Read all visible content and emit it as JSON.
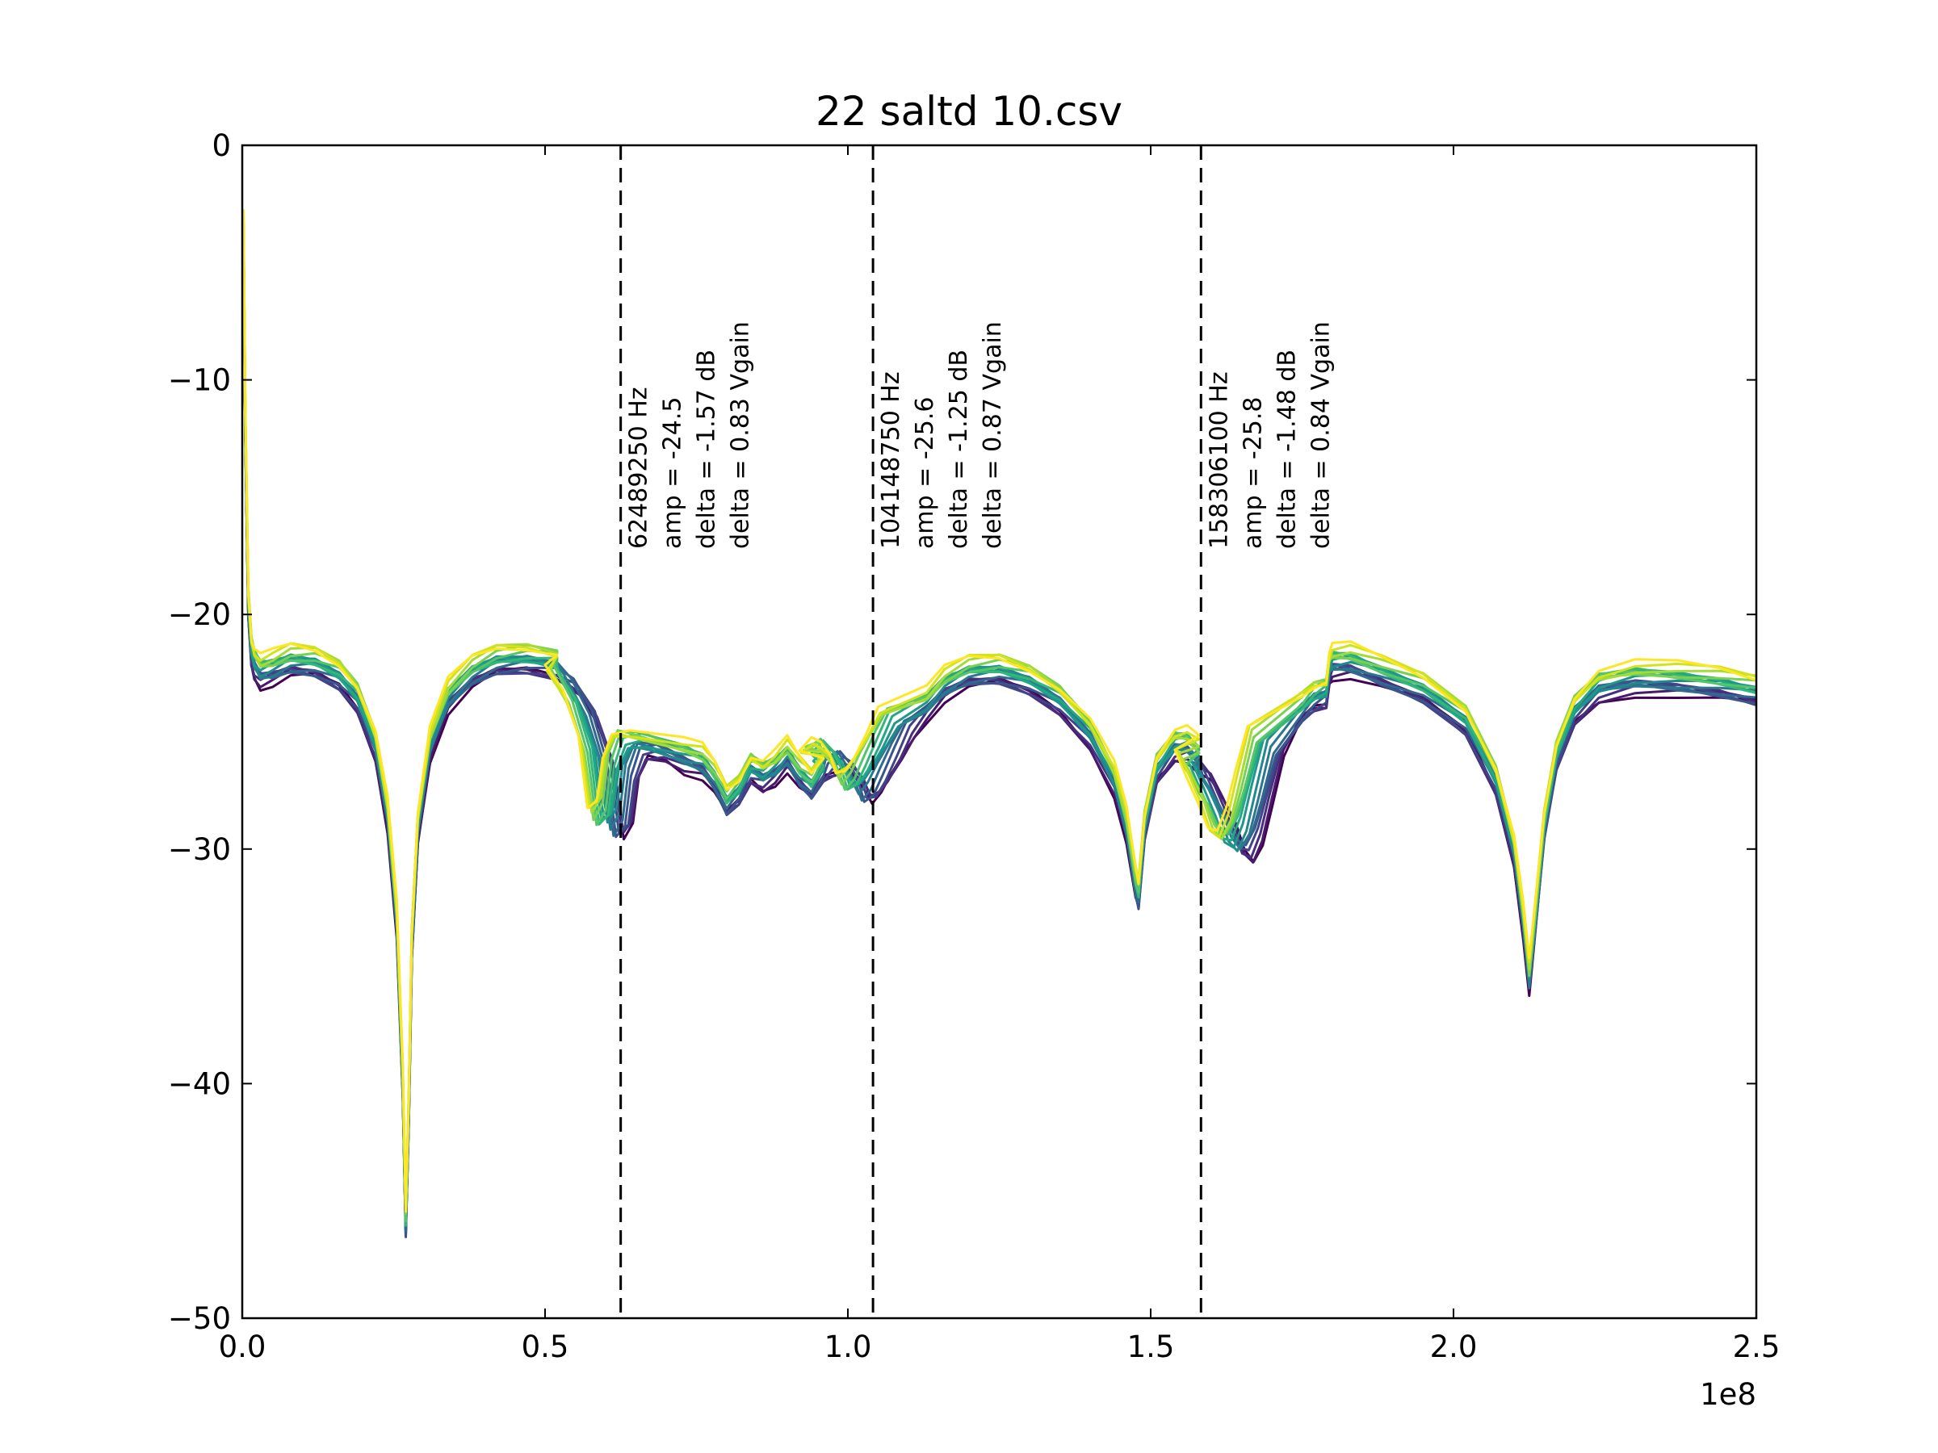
{
  "chart_data": {
    "type": "line",
    "title": "22 saltd 10.csv",
    "xlabel": "",
    "ylabel": "",
    "xlim": [
      0,
      250000000
    ],
    "ylim": [
      -50,
      0
    ],
    "x_offset_label": "1e8",
    "x_ticks": [
      0,
      50000000,
      100000000,
      150000000,
      200000000,
      250000000
    ],
    "x_tick_labels": [
      "0.0",
      "0.5",
      "1.0",
      "1.5",
      "2.0",
      "2.5"
    ],
    "y_ticks": [
      0,
      -10,
      -20,
      -30,
      -40,
      -50
    ],
    "y_tick_labels": [
      "0",
      "−10",
      "−20",
      "−30",
      "−40",
      "−50"
    ],
    "grid": false,
    "legend": "none",
    "colormap": "viridis",
    "series_count": 16,
    "series_colors": [
      "#440154",
      "#481a6c",
      "#472f7d",
      "#414487",
      "#39568c",
      "#31688e",
      "#2a788e",
      "#23888e",
      "#1f988b",
      "#22a884",
      "#35b779",
      "#54c568",
      "#7ad151",
      "#a5db36",
      "#d2e21b",
      "#fde725"
    ],
    "trough_offsets": [
      0,
      -100000,
      -400000,
      -800000,
      -1300000,
      -1700000,
      -2200000,
      -2700000,
      -3300000,
      -3700000,
      -4100000,
      -4500000,
      -5000000,
      -5300000,
      -5700000,
      -6000000
    ],
    "base_curve": {
      "x": [
        200000,
        500000,
        1000000,
        1500000,
        2000000,
        3000000,
        5000000,
        8000000,
        12000000,
        16000000,
        19000000,
        22000000,
        24000000,
        25500000,
        26500000,
        27000000,
        27500000,
        28000000,
        29000000,
        31000000,
        34000000,
        38000000,
        42000000,
        47000000,
        52000000,
        56000000,
        59000000,
        61500000,
        63000000,
        64500000,
        65500000,
        67000000,
        70000000,
        73000000,
        76000000,
        78000000,
        80000000,
        82000000,
        84000000,
        86000000,
        88000000,
        90000000,
        92000000,
        94000000,
        96000000,
        98000000,
        100000000,
        101500000,
        103000000,
        104000000,
        105500000,
        107000000,
        109000000,
        111000000,
        113000000,
        116000000,
        120000000,
        125000000,
        130000000,
        135000000,
        140000000,
        144000000,
        146000000,
        147500000,
        148000000,
        149000000,
        151000000,
        154000000,
        156000000,
        158000000,
        160000000,
        162000000,
        164000000,
        165500000,
        167000000,
        168500000,
        170000000,
        172000000,
        175000000,
        177000000,
        179000000,
        179500000,
        180000000,
        183000000,
        188000000,
        195000000,
        202000000,
        207000000,
        210000000,
        211500000,
        212500000,
        213500000,
        215000000,
        217000000,
        220000000,
        224000000,
        230000000,
        237000000,
        244000000,
        250000000
      ],
      "y": [
        -3.5,
        -12,
        -19.5,
        -21.5,
        -22.0,
        -22.4,
        -22.3,
        -22.0,
        -22.1,
        -22.6,
        -23.5,
        -25.5,
        -28.5,
        -33,
        -40,
        -46,
        -41,
        -34,
        -29,
        -25.5,
        -23.5,
        -22.5,
        -22.0,
        -21.9,
        -22.1,
        -22.7,
        -24,
        -26,
        -29,
        -28.5,
        -26.5,
        -25.5,
        -25.5,
        -26.0,
        -26.3,
        -27,
        -28,
        -27.5,
        -26.5,
        -26.8,
        -26.5,
        -26.0,
        -26.8,
        -27.3,
        -26.5,
        -26.2,
        -25.8,
        -26.2,
        -26.8,
        -27.5,
        -27.2,
        -26.5,
        -25.5,
        -24.5,
        -23.8,
        -23.0,
        -22.5,
        -22.4,
        -22.8,
        -23.6,
        -25.0,
        -27.0,
        -29.0,
        -31.5,
        -32.0,
        -29.0,
        -26.5,
        -25.5,
        -25.5,
        -26.0,
        -26.5,
        -27.5,
        -28.5,
        -29.5,
        -29.8,
        -29.0,
        -27.5,
        -25.5,
        -24.0,
        -23.5,
        -23.3,
        -22.2,
        -22.0,
        -22.0,
        -22.5,
        -23.2,
        -24.5,
        -27.0,
        -30.0,
        -33.0,
        -35.5,
        -33.0,
        -29.0,
        -26.0,
        -24.0,
        -23.0,
        -22.7,
        -22.8,
        -23.0,
        -23.3
      ]
    },
    "annotations": [
      {
        "x": 62489250,
        "lines": [
          "62489250 Hz",
          "amp = -24.5",
          "delta = -1.57 dB",
          "delta = 0.83 Vgain"
        ]
      },
      {
        "x": 104148750,
        "lines": [
          "104148750 Hz",
          "amp = -25.6",
          "delta = -1.25 dB",
          "delta = 0.87 Vgain"
        ]
      },
      {
        "x": 158306100,
        "lines": [
          "158306100 Hz",
          "amp = -25.8",
          "delta = -1.48 dB",
          "delta = 0.84 Vgain"
        ]
      }
    ]
  }
}
